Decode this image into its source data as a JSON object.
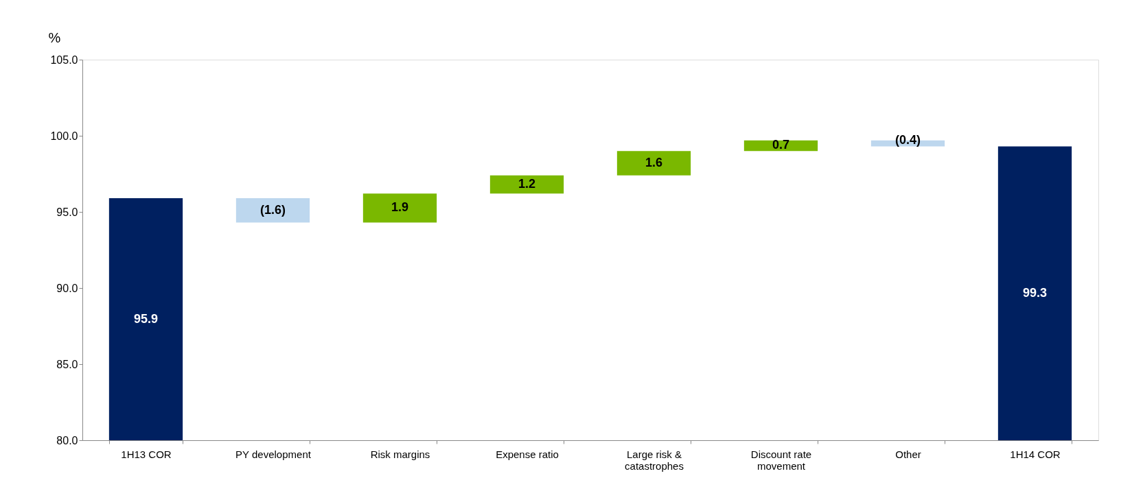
{
  "chart_data": {
    "type": "bar",
    "ylabel": "%",
    "categories": [
      "1H13 COR",
      "PY development",
      "Risk margins",
      "Expense ratio",
      "Large risk & catastrophes",
      "Discount rate movement",
      "Other",
      "1H14 COR"
    ],
    "base": [
      80.0,
      95.9,
      94.3,
      96.2,
      97.4,
      99.0,
      99.7,
      80.0
    ],
    "values": [
      15.9,
      -1.6,
      1.9,
      1.2,
      1.6,
      0.7,
      -0.4,
      19.3
    ],
    "colors": [
      "#002060",
      "#bdd7ee",
      "#7ab800",
      "#7ab800",
      "#7ab800",
      "#7ab800",
      "#bdd7ee",
      "#002060"
    ],
    "value_labels": [
      "95.9",
      "(1.6)",
      "1.9",
      "1.2",
      "1.6",
      "0.7",
      "(0.4)",
      "99.3"
    ],
    "ylim": [
      80.0,
      105.0
    ],
    "yticks": [
      {
        "value": 80,
        "label": "80.0"
      },
      {
        "value": 85,
        "label": "85.0"
      },
      {
        "value": 90,
        "label": "90.0"
      },
      {
        "value": 95,
        "label": "95.0"
      },
      {
        "value": 100,
        "label": "100.0"
      },
      {
        "value": 105,
        "label": "105.0"
      }
    ],
    "grid": false
  }
}
